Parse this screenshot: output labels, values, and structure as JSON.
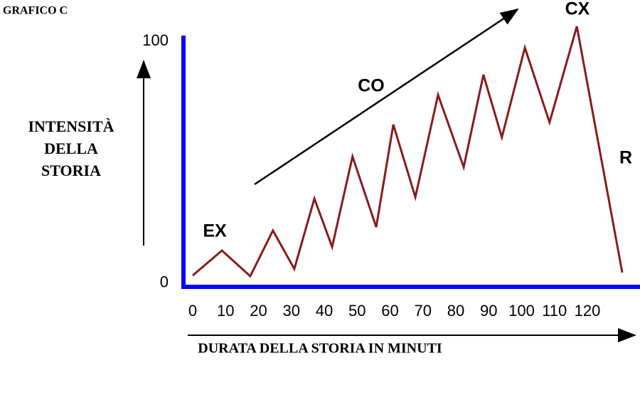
{
  "chart_data": {
    "type": "line",
    "title": "GRAFICO C",
    "y_label": [
      "INTENSITÀ",
      "DELLA",
      "STORIA"
    ],
    "x_label": "DURATA DELLA STORIA IN MINUTI",
    "annotations": [
      "EX",
      "CO",
      "CX",
      "R"
    ],
    "x": [
      0,
      8.9,
      17.5,
      24.4,
      30.9,
      37,
      42.4,
      48.6,
      55.8,
      61,
      67.7,
      74.6,
      82.4,
      88.4,
      94,
      101,
      108.5,
      116.8,
      130.6
    ],
    "series": [
      {
        "color": "#8b1a1a",
        "values": [
          3.2,
          13.5,
          2.9,
          21.8,
          5.9,
          35,
          15,
          52.4,
          23.2,
          65.6,
          35.6,
          77.9,
          48,
          86.2,
          60.3,
          97.4,
          66.5,
          106.2,
          4.4
        ]
      }
    ],
    "xlim": [
      -2.8,
      136
    ],
    "xticks": [
      0,
      10,
      20,
      30,
      40,
      50,
      60,
      70,
      80,
      90,
      100,
      110,
      120
    ],
    "ylim": [
      -1.5,
      102.4
    ],
    "yticks": [
      0,
      100
    ],
    "axis_color": "#0000ff"
  }
}
